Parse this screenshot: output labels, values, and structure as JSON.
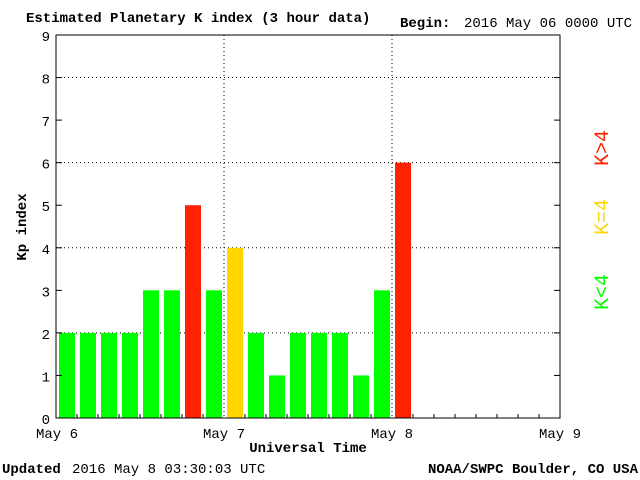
{
  "chart_data": {
    "type": "bar",
    "title": "Estimated Planetary K index (3 hour data)",
    "begin_label": "Begin:",
    "begin": "2016 May 06 0000 UTC",
    "ylabel": "Kp index",
    "xlabel": "Universal Time",
    "updated_label": "Updated",
    "updated": "2016 May  8 03:30:03 UTC",
    "source": "NOAA/SWPC Boulder, CO USA",
    "values": [
      2,
      2,
      2,
      2,
      3,
      3,
      5,
      3,
      4,
      2,
      1,
      2,
      2,
      2,
      1,
      3,
      6
    ],
    "colors": [
      "#00ff00",
      "#00ff00",
      "#00ff00",
      "#00ff00",
      "#00ff00",
      "#00ff00",
      "#ff2200",
      "#00ff00",
      "#ffd700",
      "#00ff00",
      "#00ff00",
      "#00ff00",
      "#00ff00",
      "#00ff00",
      "#00ff00",
      "#00ff00",
      "#ff2200"
    ],
    "xtick_labels": [
      "May 6",
      "May 7",
      "May 8",
      "May 9"
    ],
    "ylim": [
      0,
      9
    ],
    "yticks": [
      0,
      1,
      2,
      3,
      4,
      5,
      6,
      7,
      8,
      9
    ],
    "grid_yticks": [
      2,
      4,
      6,
      8
    ],
    "legend": [
      {
        "label": "K<4",
        "color": "#00ff00"
      },
      {
        "label": "K=4",
        "color": "#ffd700"
      },
      {
        "label": "K>4",
        "color": "#ff2200"
      }
    ]
  }
}
